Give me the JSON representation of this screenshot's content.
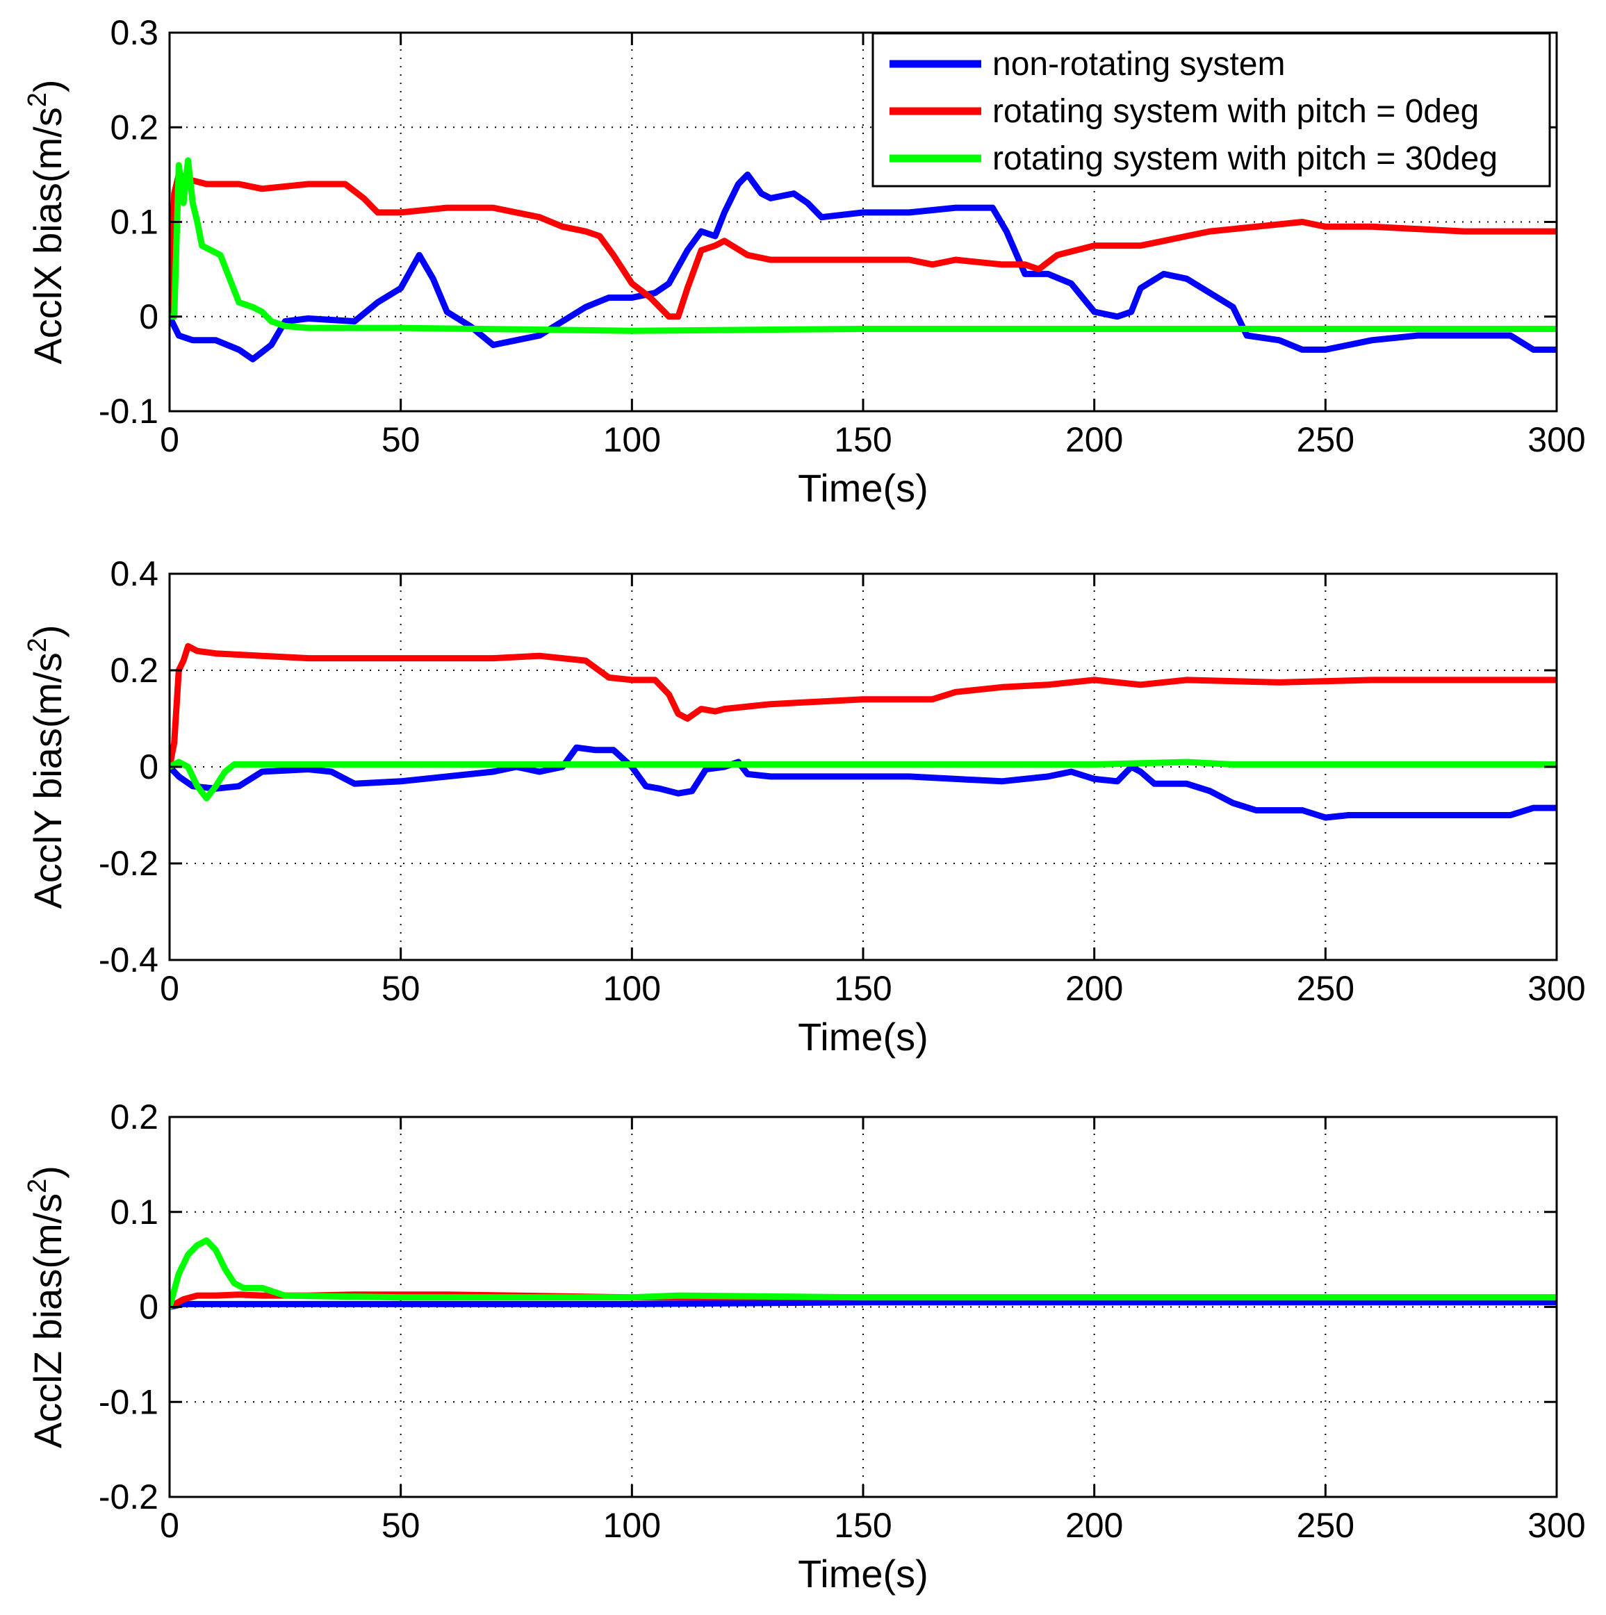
{
  "chart_data": [
    {
      "type": "line",
      "xlabel": "Time(s)",
      "ylabel": "AcclX bias(m/s",
      "ylabel_sup": "2",
      "ylabel_end": ")",
      "xlim": [
        0,
        300
      ],
      "ylim": [
        -0.1,
        0.3
      ],
      "xticks": [
        0,
        50,
        100,
        150,
        200,
        250,
        300
      ],
      "xtick_labels": [
        "0",
        "50",
        "100",
        "150",
        "200",
        "250",
        "300"
      ],
      "yticks": [
        -0.1,
        0,
        0.1,
        0.2,
        0.3
      ],
      "ytick_labels": [
        "-0.1",
        "0",
        "0.1",
        "0.2",
        "0.3"
      ],
      "grid": true,
      "legend": {
        "placement": "top-right",
        "entries": [
          "non-rotating system",
          "rotating system with pitch = 0deg",
          "rotating system with pitch = 30deg"
        ]
      },
      "series": [
        {
          "name": "non-rotating system",
          "color": "#0000ff",
          "x": [
            0,
            2,
            5,
            10,
            15,
            18,
            22,
            25,
            30,
            40,
            45,
            50,
            54,
            57,
            60,
            65,
            70,
            75,
            80,
            85,
            90,
            95,
            100,
            105,
            108,
            112,
            115,
            118,
            120,
            123,
            125,
            128,
            130,
            135,
            138,
            141,
            150,
            160,
            170,
            178,
            181,
            185,
            190,
            195,
            200,
            205,
            208,
            210,
            215,
            220,
            225,
            230,
            233,
            240,
            245,
            250,
            255,
            260,
            270,
            280,
            290,
            295,
            300
          ],
          "y": [
            0,
            -0.02,
            -0.025,
            -0.025,
            -0.035,
            -0.045,
            -0.03,
            -0.005,
            -0.002,
            -0.005,
            0.015,
            0.03,
            0.065,
            0.04,
            0.005,
            -0.01,
            -0.03,
            -0.025,
            -0.02,
            -0.005,
            0.01,
            0.02,
            0.02,
            0.025,
            0.035,
            0.07,
            0.09,
            0.085,
            0.11,
            0.14,
            0.15,
            0.13,
            0.125,
            0.13,
            0.12,
            0.105,
            0.11,
            0.11,
            0.115,
            0.115,
            0.09,
            0.045,
            0.045,
            0.035,
            0.005,
            0.0,
            0.005,
            0.03,
            0.045,
            0.04,
            0.025,
            0.01,
            -0.02,
            -0.025,
            -0.035,
            -0.035,
            -0.03,
            -0.025,
            -0.02,
            -0.02,
            -0.02,
            -0.035,
            -0.035
          ]
        },
        {
          "name": "rotating system with pitch = 0deg",
          "color": "#ff0000",
          "x": [
            0,
            1,
            2,
            4,
            8,
            15,
            20,
            30,
            38,
            42,
            45,
            50,
            60,
            70,
            80,
            85,
            90,
            93,
            96,
            100,
            104,
            108,
            110,
            112,
            115,
            118,
            120,
            125,
            130,
            150,
            160,
            165,
            170,
            180,
            185,
            188,
            192,
            200,
            205,
            210,
            215,
            220,
            225,
            235,
            245,
            250,
            260,
            280,
            300
          ],
          "y": [
            0,
            0.13,
            0.15,
            0.145,
            0.14,
            0.14,
            0.135,
            0.14,
            0.14,
            0.125,
            0.11,
            0.11,
            0.115,
            0.115,
            0.105,
            0.095,
            0.09,
            0.085,
            0.065,
            0.035,
            0.02,
            0.0,
            0.0,
            0.03,
            0.07,
            0.075,
            0.08,
            0.065,
            0.06,
            0.06,
            0.06,
            0.055,
            0.06,
            0.055,
            0.055,
            0.05,
            0.065,
            0.075,
            0.075,
            0.075,
            0.08,
            0.085,
            0.09,
            0.095,
            0.1,
            0.095,
            0.095,
            0.09,
            0.09
          ]
        },
        {
          "name": "rotating system with pitch = 30deg",
          "color": "#00ff00",
          "x": [
            0,
            1,
            2,
            3,
            4,
            5,
            6,
            7,
            9,
            11,
            13,
            15,
            18,
            20,
            22,
            25,
            30,
            50,
            100,
            150,
            200,
            250,
            300
          ],
          "y": [
            0,
            0.0,
            0.16,
            0.12,
            0.165,
            0.12,
            0.1,
            0.075,
            0.07,
            0.065,
            0.04,
            0.015,
            0.01,
            0.005,
            -0.005,
            -0.01,
            -0.012,
            -0.012,
            -0.015,
            -0.013,
            -0.013,
            -0.013,
            -0.013
          ]
        }
      ]
    },
    {
      "type": "line",
      "xlabel": "Time(s)",
      "ylabel": "AcclY bias(m/s",
      "ylabel_sup": "2",
      "ylabel_end": ")",
      "xlim": [
        0,
        300
      ],
      "ylim": [
        -0.4,
        0.4
      ],
      "xticks": [
        0,
        50,
        100,
        150,
        200,
        250,
        300
      ],
      "xtick_labels": [
        "0",
        "50",
        "100",
        "150",
        "200",
        "250",
        "300"
      ],
      "yticks": [
        -0.4,
        -0.2,
        0,
        0.2,
        0.4
      ],
      "ytick_labels": [
        "-0.4",
        "-0.2",
        "0",
        "0.2",
        "0.4"
      ],
      "grid": true,
      "series": [
        {
          "name": "non-rotating system",
          "color": "#0000ff",
          "x": [
            0,
            2,
            5,
            10,
            15,
            20,
            30,
            35,
            40,
            50,
            60,
            70,
            75,
            80,
            85,
            88,
            92,
            96,
            100,
            103,
            106,
            110,
            113,
            116,
            120,
            123,
            125,
            130,
            140,
            150,
            160,
            170,
            180,
            190,
            195,
            200,
            205,
            208,
            210,
            213,
            220,
            225,
            230,
            235,
            245,
            250,
            255,
            270,
            290,
            295,
            300
          ],
          "y": [
            0,
            -0.02,
            -0.04,
            -0.045,
            -0.04,
            -0.01,
            -0.005,
            -0.01,
            -0.035,
            -0.03,
            -0.02,
            -0.01,
            0.0,
            -0.01,
            0.0,
            0.04,
            0.035,
            0.035,
            0.0,
            -0.04,
            -0.045,
            -0.055,
            -0.05,
            -0.005,
            0.0,
            0.01,
            -0.015,
            -0.02,
            -0.02,
            -0.02,
            -0.02,
            -0.025,
            -0.03,
            -0.02,
            -0.01,
            -0.025,
            -0.03,
            0.0,
            -0.01,
            -0.035,
            -0.035,
            -0.05,
            -0.075,
            -0.09,
            -0.09,
            -0.105,
            -0.1,
            -0.1,
            -0.1,
            -0.085,
            -0.085
          ]
        },
        {
          "name": "rotating system with pitch = 0deg",
          "color": "#ff0000",
          "x": [
            0,
            1,
            2,
            3,
            4,
            6,
            10,
            20,
            30,
            50,
            70,
            80,
            90,
            95,
            100,
            105,
            108,
            110,
            112,
            115,
            118,
            120,
            125,
            130,
            140,
            150,
            160,
            165,
            170,
            180,
            190,
            200,
            210,
            220,
            240,
            260,
            280,
            300
          ],
          "y": [
            0,
            0.05,
            0.2,
            0.22,
            0.25,
            0.24,
            0.235,
            0.23,
            0.225,
            0.225,
            0.225,
            0.23,
            0.22,
            0.185,
            0.18,
            0.18,
            0.15,
            0.11,
            0.1,
            0.12,
            0.115,
            0.12,
            0.125,
            0.13,
            0.135,
            0.14,
            0.14,
            0.14,
            0.155,
            0.165,
            0.17,
            0.18,
            0.17,
            0.18,
            0.175,
            0.18,
            0.18,
            0.18
          ]
        },
        {
          "name": "rotating system with pitch = 30deg",
          "color": "#00ff00",
          "x": [
            0,
            2,
            4,
            6,
            8,
            10,
            12,
            14,
            20,
            50,
            100,
            150,
            200,
            220,
            230,
            250,
            300
          ],
          "y": [
            0,
            0.01,
            0.0,
            -0.04,
            -0.065,
            -0.04,
            -0.01,
            0.005,
            0.005,
            0.005,
            0.005,
            0.005,
            0.005,
            0.01,
            0.005,
            0.005,
            0.005
          ]
        }
      ]
    },
    {
      "type": "line",
      "xlabel": "Time(s)",
      "ylabel": "AcclZ bias(m/s",
      "ylabel_sup": "2",
      "ylabel_end": ")",
      "xlim": [
        0,
        300
      ],
      "ylim": [
        -0.2,
        0.2
      ],
      "xticks": [
        0,
        50,
        100,
        150,
        200,
        250,
        300
      ],
      "xtick_labels": [
        "0",
        "50",
        "100",
        "150",
        "200",
        "250",
        "300"
      ],
      "yticks": [
        -0.2,
        -0.1,
        0,
        0.1,
        0.2
      ],
      "ytick_labels": [
        "-0.2",
        "-0.1",
        "0",
        "0.1",
        "0.2"
      ],
      "grid": true,
      "series": [
        {
          "name": "non-rotating system",
          "color": "#0000ff",
          "x": [
            0,
            3,
            6,
            10,
            50,
            100,
            150,
            200,
            250,
            300
          ],
          "y": [
            0,
            0.003,
            0.003,
            0.003,
            0.003,
            0.003,
            0.005,
            0.005,
            0.005,
            0.005
          ]
        },
        {
          "name": "rotating system with pitch = 0deg",
          "color": "#ff0000",
          "x": [
            0,
            3,
            6,
            10,
            15,
            20,
            30,
            40,
            60,
            100,
            150,
            200,
            250,
            300
          ],
          "y": [
            0,
            0.008,
            0.012,
            0.012,
            0.013,
            0.012,
            0.012,
            0.013,
            0.013,
            0.01,
            0.01,
            0.01,
            0.01,
            0.01
          ]
        },
        {
          "name": "rotating system with pitch = 30deg",
          "color": "#00ff00",
          "x": [
            0,
            2,
            4,
            6,
            8,
            10,
            12,
            14,
            16,
            20,
            25,
            50,
            100,
            110,
            150,
            200,
            250,
            300
          ],
          "y": [
            0,
            0.035,
            0.055,
            0.065,
            0.07,
            0.06,
            0.04,
            0.025,
            0.02,
            0.02,
            0.012,
            0.01,
            0.01,
            0.012,
            0.01,
            0.01,
            0.01,
            0.01
          ]
        }
      ]
    }
  ]
}
